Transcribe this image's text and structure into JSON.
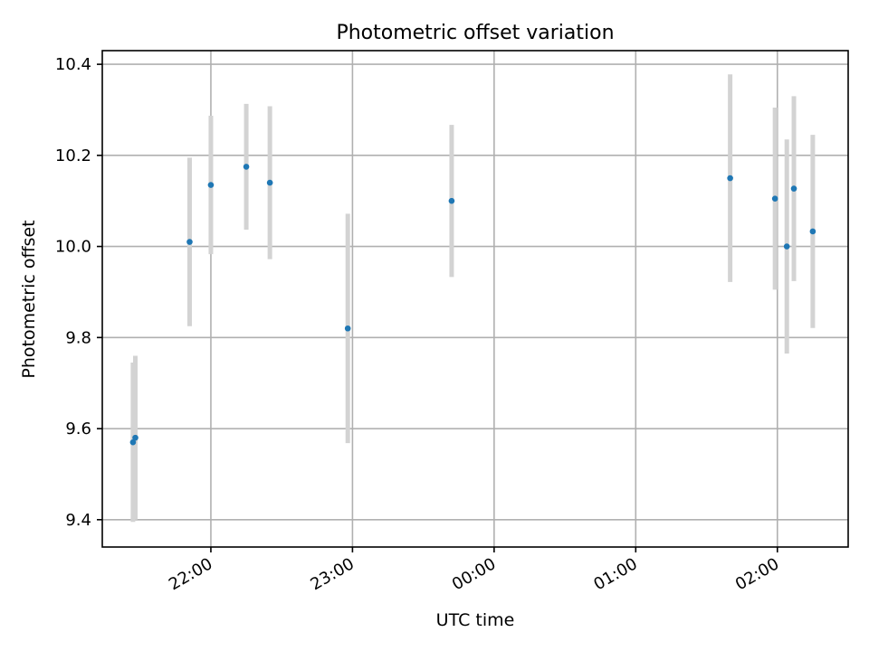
{
  "chart_data": {
    "type": "scatter",
    "title": "Photometric offset variation",
    "xlabel": "UTC time",
    "ylabel": "Photometric offset",
    "xlim": [
      "21:14",
      "02:30"
    ],
    "ylim": [
      9.34,
      10.43
    ],
    "xticks": [
      "22:00",
      "23:00",
      "00:00",
      "01:00",
      "02:00"
    ],
    "yticks": [
      "9.4",
      "9.6",
      "9.8",
      "10.0",
      "10.2",
      "10.4"
    ],
    "grid": true,
    "series": [
      {
        "marker_color": "#1f77b4",
        "errorbar_color": "#d3d3d3",
        "points": [
          {
            "x": "21:27",
            "y": 9.57,
            "err": 0.175
          },
          {
            "x": "21:28",
            "y": 9.58,
            "err": 0.18
          },
          {
            "x": "21:51",
            "y": 10.01,
            "err": 0.185
          },
          {
            "x": "22:00",
            "y": 10.135,
            "err": 0.152
          },
          {
            "x": "22:15",
            "y": 10.175,
            "err": 0.138
          },
          {
            "x": "22:25",
            "y": 10.14,
            "err": 0.168
          },
          {
            "x": "22:58",
            "y": 9.82,
            "err": 0.252
          },
          {
            "x": "23:42",
            "y": 10.1,
            "err": 0.167
          },
          {
            "x": "01:40",
            "y": 10.15,
            "err": 0.228
          },
          {
            "x": "01:59",
            "y": 10.105,
            "err": 0.2
          },
          {
            "x": "02:04",
            "y": 10.0,
            "err": 0.235
          },
          {
            "x": "02:07",
            "y": 10.127,
            "err": 0.203
          },
          {
            "x": "02:15",
            "y": 10.033,
            "err": 0.212
          }
        ]
      }
    ]
  }
}
